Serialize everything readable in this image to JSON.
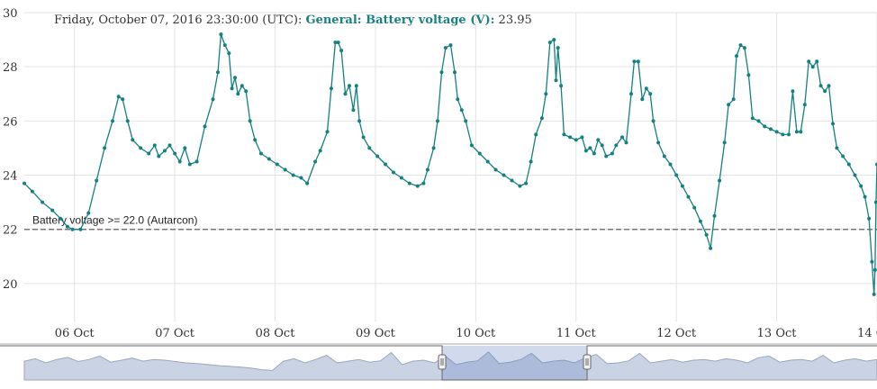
{
  "header": {
    "timestamp": "Friday, October 07, 2016 23:30:00 (UTC):",
    "series_label": "General: Battery voltage (V):",
    "value": "23.95"
  },
  "colors": {
    "series": "#148080",
    "reference": "#777777",
    "grid": "#e3e3e3",
    "navigator_fill": "#c9d3e3",
    "navigator_line": "#9aa6bb"
  },
  "chart_data": {
    "type": "line",
    "title": "",
    "xlabel": "",
    "ylabel": "",
    "ylim": [
      18.6,
      30
    ],
    "yticks": [
      20,
      22,
      24,
      26,
      28,
      30
    ],
    "xlim": [
      5.5,
      14.0
    ],
    "xticks": [
      {
        "day": 6,
        "label": "06 Oct"
      },
      {
        "day": 7,
        "label": "07 Oct"
      },
      {
        "day": 8,
        "label": "08 Oct"
      },
      {
        "day": 9,
        "label": "09 Oct"
      },
      {
        "day": 10,
        "label": "10 Oct"
      },
      {
        "day": 11,
        "label": "11 Oct"
      },
      {
        "day": 12,
        "label": "12 Oct"
      },
      {
        "day": 13,
        "label": "13 Oct"
      },
      {
        "day": 14,
        "label": "14 Oct"
      }
    ],
    "reference_line": {
      "value": 22.0,
      "label": "Battery voltage >= 22.0 (Autarcon)"
    },
    "series": [
      {
        "values": [
          [
            5.5,
            23.7
          ],
          [
            5.58,
            23.4
          ],
          [
            5.68,
            23.0
          ],
          [
            5.78,
            22.7
          ],
          [
            5.86,
            22.4
          ],
          [
            5.93,
            22.1
          ],
          [
            5.98,
            22.0
          ],
          [
            6.06,
            22.0
          ],
          [
            6.14,
            22.6
          ],
          [
            6.22,
            23.8
          ],
          [
            6.3,
            25.0
          ],
          [
            6.38,
            26.0
          ],
          [
            6.44,
            26.9
          ],
          [
            6.48,
            26.8
          ],
          [
            6.53,
            26.0
          ],
          [
            6.58,
            25.3
          ],
          [
            6.66,
            25.0
          ],
          [
            6.74,
            24.8
          ],
          [
            6.8,
            25.1
          ],
          [
            6.84,
            24.7
          ],
          [
            6.9,
            24.9
          ],
          [
            6.95,
            25.1
          ],
          [
            7.0,
            24.8
          ],
          [
            7.05,
            24.5
          ],
          [
            7.1,
            25.0
          ],
          [
            7.15,
            24.4
          ],
          [
            7.22,
            24.5
          ],
          [
            7.3,
            25.8
          ],
          [
            7.38,
            26.8
          ],
          [
            7.43,
            27.8
          ],
          [
            7.46,
            29.2
          ],
          [
            7.5,
            28.8
          ],
          [
            7.54,
            28.5
          ],
          [
            7.57,
            27.2
          ],
          [
            7.6,
            27.6
          ],
          [
            7.63,
            27.0
          ],
          [
            7.67,
            27.3
          ],
          [
            7.71,
            27.1
          ],
          [
            7.75,
            26.0
          ],
          [
            7.8,
            25.3
          ],
          [
            7.86,
            24.8
          ],
          [
            7.94,
            24.6
          ],
          [
            8.02,
            24.4
          ],
          [
            8.1,
            24.2
          ],
          [
            8.18,
            24.0
          ],
          [
            8.26,
            23.9
          ],
          [
            8.32,
            23.7
          ],
          [
            8.4,
            24.5
          ],
          [
            8.45,
            24.9
          ],
          [
            8.52,
            25.6
          ],
          [
            8.56,
            27.2
          ],
          [
            8.6,
            28.9
          ],
          [
            8.63,
            28.9
          ],
          [
            8.66,
            28.6
          ],
          [
            8.7,
            27.0
          ],
          [
            8.74,
            27.3
          ],
          [
            8.78,
            26.4
          ],
          [
            8.81,
            27.3
          ],
          [
            8.84,
            26.0
          ],
          [
            8.88,
            25.4
          ],
          [
            8.94,
            25.0
          ],
          [
            9.02,
            24.7
          ],
          [
            9.1,
            24.4
          ],
          [
            9.18,
            24.1
          ],
          [
            9.26,
            23.9
          ],
          [
            9.34,
            23.7
          ],
          [
            9.42,
            23.6
          ],
          [
            9.48,
            23.7
          ],
          [
            9.52,
            24.2
          ],
          [
            9.58,
            25.0
          ],
          [
            9.62,
            26.0
          ],
          [
            9.66,
            27.8
          ],
          [
            9.7,
            28.7
          ],
          [
            9.75,
            28.8
          ],
          [
            9.79,
            27.8
          ],
          [
            9.82,
            26.8
          ],
          [
            9.86,
            26.4
          ],
          [
            9.9,
            26.0
          ],
          [
            9.96,
            25.1
          ],
          [
            10.04,
            24.8
          ],
          [
            10.12,
            24.5
          ],
          [
            10.2,
            24.2
          ],
          [
            10.28,
            24.0
          ],
          [
            10.36,
            23.8
          ],
          [
            10.44,
            23.6
          ],
          [
            10.5,
            23.7
          ],
          [
            10.55,
            24.5
          ],
          [
            10.6,
            25.5
          ],
          [
            10.66,
            26.1
          ],
          [
            10.7,
            27.0
          ],
          [
            10.74,
            28.9
          ],
          [
            10.78,
            29.0
          ],
          [
            10.8,
            27.5
          ],
          [
            10.82,
            28.7
          ],
          [
            10.85,
            27.3
          ],
          [
            10.88,
            25.5
          ],
          [
            10.94,
            25.4
          ],
          [
            11.0,
            25.3
          ],
          [
            11.06,
            25.4
          ],
          [
            11.1,
            24.9
          ],
          [
            11.14,
            25.0
          ],
          [
            11.18,
            24.8
          ],
          [
            11.22,
            25.3
          ],
          [
            11.26,
            25.1
          ],
          [
            11.3,
            24.7
          ],
          [
            11.36,
            24.8
          ],
          [
            11.4,
            25.1
          ],
          [
            11.46,
            25.4
          ],
          [
            11.5,
            25.2
          ],
          [
            11.55,
            27.0
          ],
          [
            11.58,
            28.2
          ],
          [
            11.62,
            28.2
          ],
          [
            11.66,
            26.8
          ],
          [
            11.7,
            27.2
          ],
          [
            11.74,
            27.0
          ],
          [
            11.77,
            26.0
          ],
          [
            11.82,
            25.2
          ],
          [
            11.88,
            24.7
          ],
          [
            11.94,
            24.4
          ],
          [
            12.0,
            24.0
          ],
          [
            12.06,
            23.6
          ],
          [
            12.12,
            23.2
          ],
          [
            12.18,
            22.8
          ],
          [
            12.24,
            22.3
          ],
          [
            12.3,
            21.8
          ],
          [
            12.34,
            21.3
          ],
          [
            12.38,
            22.5
          ],
          [
            12.43,
            23.8
          ],
          [
            12.48,
            25.2
          ],
          [
            12.52,
            26.6
          ],
          [
            12.57,
            26.8
          ],
          [
            12.6,
            28.4
          ],
          [
            12.64,
            28.8
          ],
          [
            12.68,
            28.7
          ],
          [
            12.72,
            27.7
          ],
          [
            12.76,
            26.1
          ],
          [
            12.82,
            26.0
          ],
          [
            12.88,
            25.8
          ],
          [
            12.94,
            25.7
          ],
          [
            13.0,
            25.6
          ],
          [
            13.06,
            25.5
          ],
          [
            13.12,
            25.5
          ],
          [
            13.16,
            27.1
          ],
          [
            13.2,
            25.6
          ],
          [
            13.24,
            25.6
          ],
          [
            13.28,
            26.6
          ],
          [
            13.32,
            28.2
          ],
          [
            13.36,
            28.0
          ],
          [
            13.4,
            28.2
          ],
          [
            13.44,
            27.3
          ],
          [
            13.48,
            27.1
          ],
          [
            13.52,
            27.3
          ],
          [
            13.56,
            25.9
          ],
          [
            13.6,
            25.0
          ],
          [
            13.66,
            24.7
          ],
          [
            13.72,
            24.4
          ],
          [
            13.78,
            24.0
          ],
          [
            13.84,
            23.6
          ],
          [
            13.88,
            23.2
          ],
          [
            13.92,
            22.4
          ],
          [
            13.95,
            20.8
          ],
          [
            13.97,
            19.6
          ],
          [
            13.98,
            20.5
          ],
          [
            13.99,
            23.0
          ],
          [
            14.0,
            24.4
          ]
        ]
      }
    ]
  },
  "navigator": {
    "values": [
      0.55,
      0.62,
      0.5,
      0.6,
      0.66,
      0.54,
      0.6,
      0.7,
      0.52,
      0.58,
      0.64,
      0.55,
      0.6,
      0.58,
      0.54,
      0.5,
      0.48,
      0.45,
      0.42,
      0.4,
      0.38,
      0.35,
      0.3,
      0.28,
      0.55,
      0.62,
      0.5,
      0.6,
      0.72,
      0.5,
      0.55,
      0.6,
      0.52,
      0.56,
      0.8,
      0.45,
      0.55,
      0.58,
      0.5,
      0.7,
      0.45,
      0.52,
      0.56,
      0.82,
      0.48,
      0.52,
      0.6,
      0.78,
      0.5,
      0.55,
      0.58,
      0.5,
      0.65,
      0.75,
      0.48,
      0.5,
      0.56,
      0.78,
      0.5,
      0.55,
      0.6,
      0.52,
      0.58,
      0.6,
      0.55,
      0.62,
      0.58,
      0.5,
      0.65,
      0.7,
      0.52,
      0.58,
      0.6,
      0.55,
      0.72,
      0.5,
      0.58,
      0.62,
      0.55,
      0.6
    ],
    "selection": [
      0.49,
      0.66
    ]
  }
}
